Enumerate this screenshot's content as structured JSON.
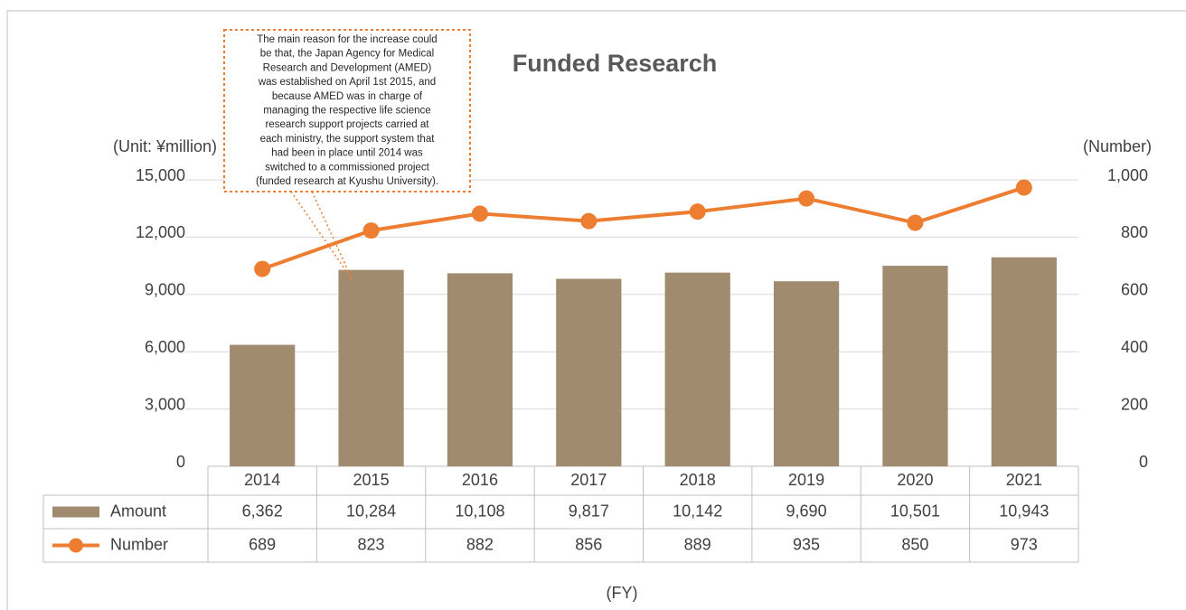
{
  "chart_data": {
    "type": "bar_line",
    "title": "Funded Research",
    "y_label": "(Unit: ¥million)",
    "y2_label": "(Number)",
    "x_label": "(FY)",
    "annotation": [
      "The main reason for the increase could",
      "be that, the Japan Agency for Medical",
      "Research and Development (AMED)",
      "was established on April 1st 2015, and",
      "because AMED was in charge of",
      "managing the respective life science",
      "research support projects carried at",
      "each ministry, the support system that",
      "had been in place until 2014 was",
      "switched to a commissioned project",
      "(funded research at Kyushu University)."
    ],
    "categories": [
      "2014",
      "2015",
      "2016",
      "2017",
      "2018",
      "2019",
      "2020",
      "2021"
    ],
    "series": [
      {
        "name": "Amount",
        "type": "bar",
        "color": "#a08b6e",
        "values": [
          6362,
          10284,
          10108,
          9817,
          10142,
          9690,
          10501,
          10943
        ],
        "value_labels": [
          "6,362",
          "10,284",
          "10,108",
          "9,817",
          "10,142",
          "9,690",
          "10,501",
          "10,943"
        ]
      },
      {
        "name": "Number",
        "type": "line",
        "axis": "y2",
        "color": "#ed7d31",
        "values": [
          689,
          823,
          882,
          856,
          889,
          935,
          850,
          973
        ]
      }
    ],
    "ylim": [
      0,
      15000
    ],
    "yticks": [
      0,
      {
        "value": 3000,
        "label": "3,000"
      },
      {
        "value": 6000,
        "label": "6,000"
      },
      {
        "value": 9000,
        "label": "9,000"
      },
      {
        "value": 12000,
        "label": "12,000"
      },
      {
        "value": 15000,
        "label": "15,000"
      }
    ],
    "y2lim": [
      0,
      1000
    ],
    "y2ticks": [
      0,
      200,
      400,
      600,
      800,
      {
        "value": 1000,
        "label": "1,000"
      }
    ],
    "grid": true
  }
}
